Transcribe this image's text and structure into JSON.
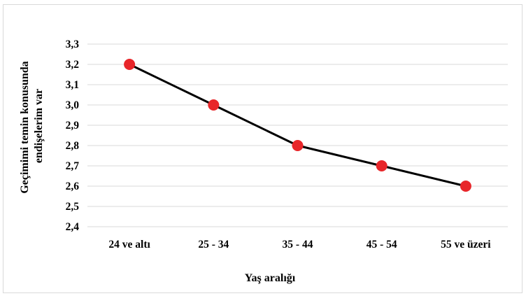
{
  "chart_data": {
    "type": "line",
    "categories": [
      "24 ve altı",
      "25 - 34",
      "35 - 44",
      "45 - 54",
      "55 ve üzeri"
    ],
    "series": [
      {
        "values": [
          3.2,
          3.0,
          2.8,
          2.7,
          2.6
        ]
      }
    ],
    "y_ticks": [
      "2,4",
      "2,5",
      "2,6",
      "2,7",
      "2,8",
      "2,9",
      "3,0",
      "3,1",
      "3,2",
      "3,3"
    ],
    "xlabel": "Yaş aralığı",
    "ylabel_lines": [
      "Geçimimi temin konusunda",
      "endişelerim var"
    ],
    "ylim": [
      2.4,
      3.3
    ],
    "grid": true,
    "colors": {
      "line": "#000000",
      "marker": "#e8262a",
      "grid": "#d9d9d9"
    }
  }
}
